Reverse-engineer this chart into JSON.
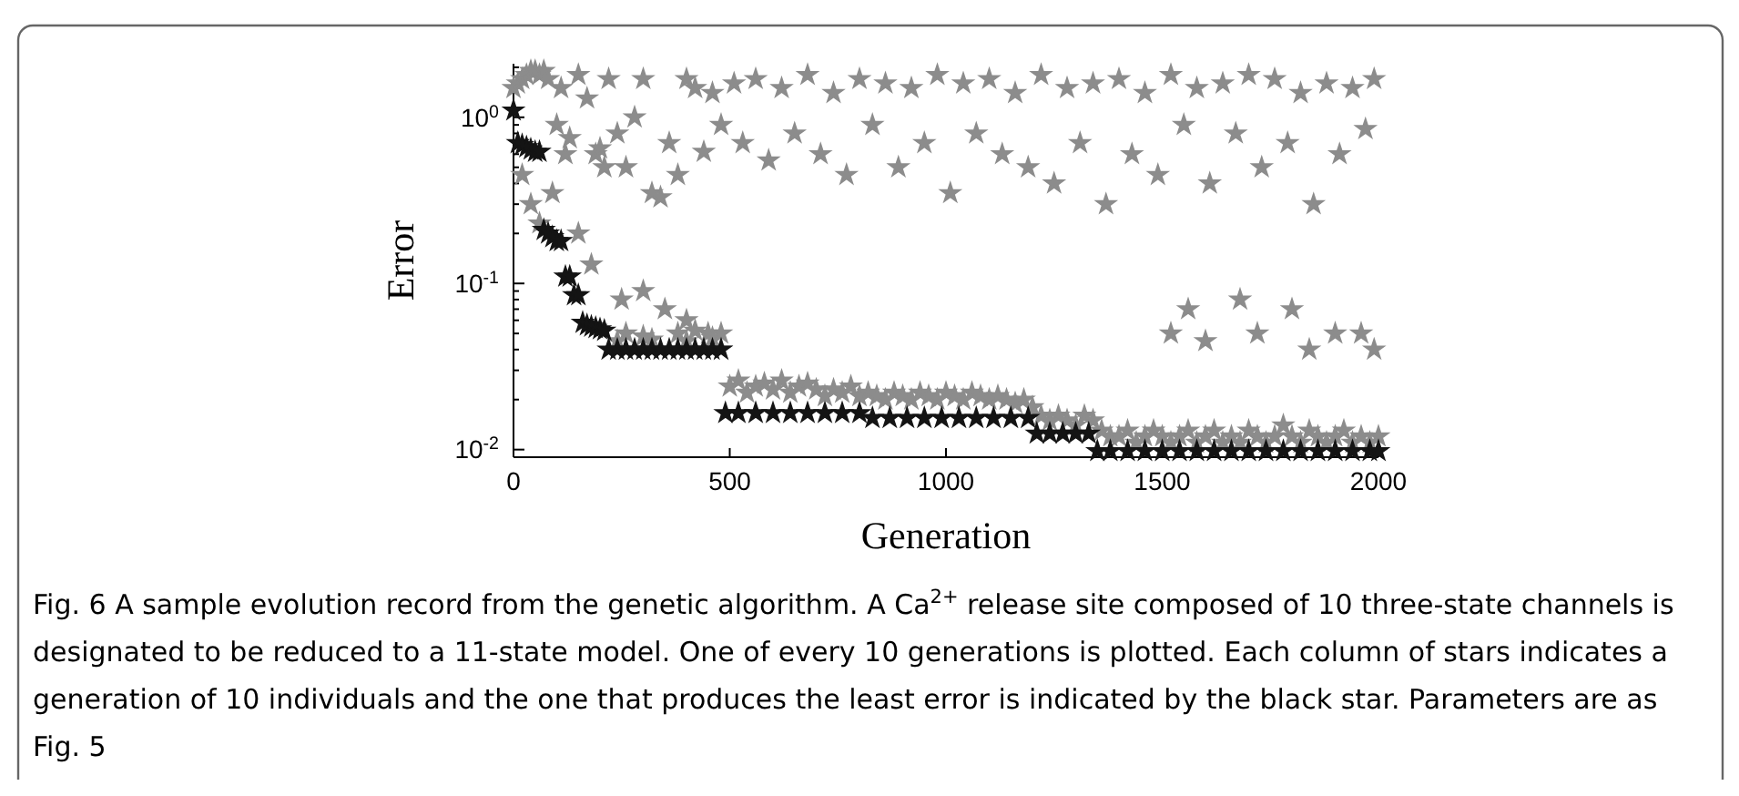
{
  "chart_data": {
    "type": "scatter",
    "xlabel": "Generation",
    "ylabel": "Error",
    "log": "y",
    "xlim": [
      0,
      2000
    ],
    "ylim": [
      0.009,
      2.1
    ],
    "xticks": [
      0,
      500,
      1000,
      1500,
      2000
    ],
    "yticks": [
      {
        "value": 0.01,
        "label": "10$^{-2}$"
      },
      {
        "value": 0.1,
        "label": "10$^{-1}$"
      },
      {
        "value": 1,
        "label": "10$^{0}$"
      }
    ],
    "grid": false,
    "marker": "star",
    "annotations": [
      "Fig. 6  A sample evolution record from the genetic algorithm. A Ca$^{2+}$ release site composed of 10 three-state channels is designated to be reduced to a 11-state model. One of every 10 generations is plotted. Each column of stars indicates a generation of 10 individuals and the one that produces the least error is indicated by the black star. Parameters are as Fig. 5"
    ],
    "series": [
      {
        "color": "#8c8c8c",
        "x": [
          0,
          10,
          20,
          30,
          40,
          50,
          60,
          70,
          80,
          100,
          110,
          130,
          150,
          170,
          190,
          200,
          220,
          240,
          260,
          280,
          300,
          320,
          340,
          360,
          380,
          400,
          420,
          440,
          460,
          480,
          20,
          40,
          60,
          90,
          120,
          150,
          180,
          210,
          250,
          300,
          350,
          400,
          450,
          480,
          240,
          260,
          300,
          320,
          380,
          400,
          420,
          460,
          480,
          500,
          520,
          540,
          560,
          580,
          600,
          620,
          640,
          660,
          680,
          700,
          720,
          740,
          760,
          780,
          800,
          820,
          840,
          860,
          880,
          900,
          920,
          940,
          960,
          980,
          1000,
          1020,
          1040,
          1060,
          1080,
          1100,
          1120,
          1140,
          1160,
          1180,
          1200,
          1220,
          1240,
          1260,
          1280,
          1300,
          1320,
          1340,
          1360,
          1380,
          1400,
          1420,
          1440,
          1460,
          1480,
          1500,
          1520,
          1540,
          1560,
          1580,
          1600,
          1620,
          1640,
          1660,
          1680,
          1700,
          1720,
          1740,
          1760,
          1780,
          1800,
          1820,
          1840,
          1860,
          1880,
          1900,
          1920,
          1940,
          1960,
          1980,
          2000,
          510,
          560,
          620,
          680,
          740,
          800,
          860,
          920,
          980,
          1040,
          1100,
          1160,
          1220,
          1280,
          1340,
          1400,
          1460,
          1520,
          1580,
          1640,
          1700,
          1760,
          1820,
          1880,
          1940,
          1990,
          530,
          590,
          650,
          710,
          770,
          830,
          890,
          950,
          1010,
          1070,
          1130,
          1190,
          1250,
          1310,
          1370,
          1430,
          1490,
          1550,
          1610,
          1670,
          1730,
          1790,
          1850,
          1910,
          1970,
          1520,
          1560,
          1600,
          1680,
          1720,
          1800,
          1840,
          1900,
          1960,
          1990
        ],
        "values": [
          1.5,
          1.6,
          1.7,
          1.8,
          1.9,
          1.9,
          1.8,
          1.9,
          1.7,
          0.9,
          1.5,
          0.75,
          1.8,
          1.3,
          0.6,
          0.65,
          1.7,
          0.8,
          0.5,
          1.0,
          1.7,
          0.35,
          0.33,
          0.7,
          0.45,
          1.7,
          1.5,
          0.62,
          1.4,
          0.9,
          0.45,
          0.3,
          0.23,
          0.35,
          0.6,
          0.2,
          0.13,
          0.5,
          0.08,
          0.09,
          0.07,
          0.06,
          0.05,
          0.04,
          0.045,
          0.05,
          0.048,
          0.046,
          0.05,
          0.045,
          0.052,
          0.047,
          0.05,
          0.024,
          0.026,
          0.022,
          0.024,
          0.025,
          0.023,
          0.026,
          0.022,
          0.024,
          0.025,
          0.023,
          0.021,
          0.023,
          0.022,
          0.024,
          0.021,
          0.022,
          0.021,
          0.02,
          0.022,
          0.021,
          0.02,
          0.022,
          0.021,
          0.02,
          0.022,
          0.021,
          0.02,
          0.022,
          0.021,
          0.02,
          0.021,
          0.02,
          0.019,
          0.02,
          0.018,
          0.016,
          0.015,
          0.016,
          0.015,
          0.014,
          0.016,
          0.015,
          0.013,
          0.012,
          0.012,
          0.013,
          0.011,
          0.012,
          0.013,
          0.012,
          0.011,
          0.012,
          0.013,
          0.011,
          0.012,
          0.013,
          0.011,
          0.012,
          0.011,
          0.013,
          0.012,
          0.011,
          0.012,
          0.014,
          0.012,
          0.011,
          0.013,
          0.012,
          0.011,
          0.012,
          0.013,
          0.011,
          0.012,
          0.011,
          0.012,
          1.6,
          1.7,
          1.5,
          1.8,
          1.4,
          1.7,
          1.6,
          1.5,
          1.8,
          1.6,
          1.7,
          1.4,
          1.8,
          1.5,
          1.6,
          1.7,
          1.4,
          1.8,
          1.5,
          1.6,
          1.8,
          1.7,
          1.4,
          1.6,
          1.5,
          1.7,
          0.7,
          0.55,
          0.8,
          0.6,
          0.45,
          0.9,
          0.5,
          0.7,
          0.35,
          0.8,
          0.6,
          0.5,
          0.4,
          0.7,
          0.3,
          0.6,
          0.45,
          0.9,
          0.4,
          0.8,
          0.5,
          0.7,
          0.3,
          0.6,
          0.85,
          0.05,
          0.07,
          0.045,
          0.08,
          0.05,
          0.07,
          0.04,
          0.05,
          0.05,
          0.04
        ]
      },
      {
        "color": "#141414",
        "x": [
          0,
          10,
          20,
          30,
          40,
          50,
          60,
          70,
          80,
          90,
          100,
          110,
          120,
          130,
          140,
          150,
          160,
          170,
          180,
          190,
          200,
          210,
          220,
          240,
          260,
          280,
          300,
          320,
          340,
          360,
          380,
          400,
          420,
          440,
          460,
          480,
          490,
          520,
          560,
          600,
          640,
          680,
          720,
          760,
          800,
          830,
          870,
          910,
          950,
          990,
          1030,
          1070,
          1110,
          1150,
          1190,
          1210,
          1240,
          1270,
          1300,
          1330,
          1350,
          1380,
          1420,
          1460,
          1500,
          1540,
          1580,
          1620,
          1660,
          1700,
          1740,
          1780,
          1820,
          1860,
          1900,
          1940,
          1980,
          2000
        ],
        "values": [
          1.1,
          0.7,
          0.68,
          0.66,
          0.64,
          0.62,
          0.62,
          0.21,
          0.2,
          0.19,
          0.18,
          0.18,
          0.11,
          0.11,
          0.085,
          0.085,
          0.058,
          0.056,
          0.055,
          0.054,
          0.053,
          0.052,
          0.04,
          0.04,
          0.04,
          0.04,
          0.04,
          0.04,
          0.04,
          0.04,
          0.04,
          0.04,
          0.04,
          0.04,
          0.04,
          0.04,
          0.0166,
          0.0166,
          0.0166,
          0.0166,
          0.0166,
          0.0166,
          0.0166,
          0.0166,
          0.0166,
          0.0155,
          0.0155,
          0.0155,
          0.0155,
          0.0155,
          0.0155,
          0.0155,
          0.0155,
          0.0155,
          0.0155,
          0.0125,
          0.0125,
          0.0125,
          0.0125,
          0.0125,
          0.0098,
          0.0098,
          0.0098,
          0.0098,
          0.0098,
          0.0098,
          0.0098,
          0.0098,
          0.0098,
          0.0098,
          0.0098,
          0.0098,
          0.0098,
          0.0098,
          0.0098,
          0.0098,
          0.0098,
          0.0098
        ]
      }
    ]
  }
}
